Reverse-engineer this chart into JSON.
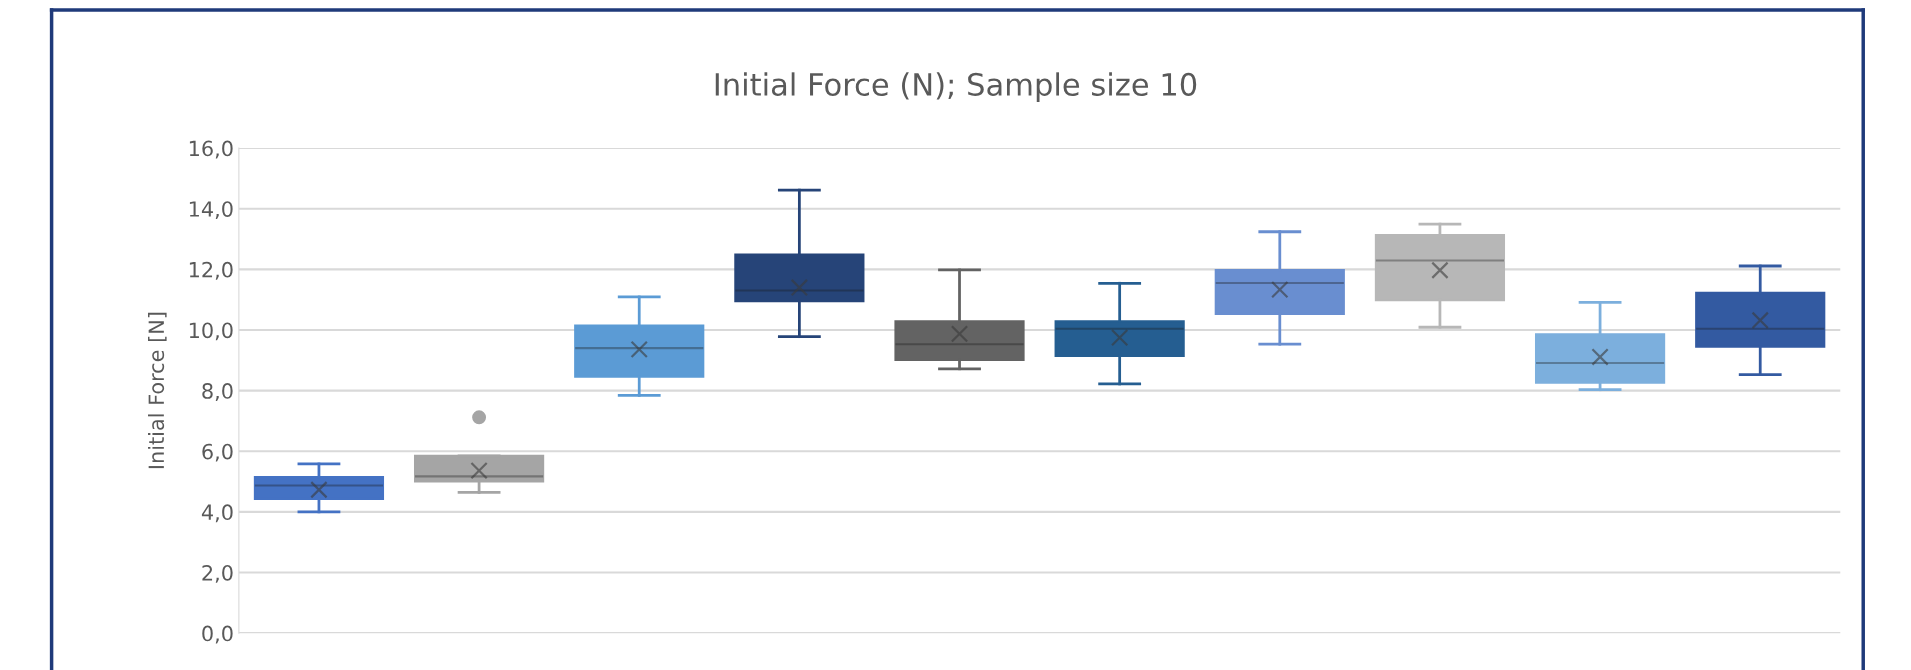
{
  "chart_data": {
    "type": "box",
    "title": "Initial Force (N); Sample size 10",
    "ylabel": "Initial Force [N]",
    "categories": [
      null,
      null,
      null,
      null,
      null,
      null,
      null,
      null,
      null,
      null
    ],
    "colors": [
      "#4472c4",
      "#a5a5a5",
      "#5b9bd5",
      "#264478",
      "#636363",
      "#255e91",
      "#698ed0",
      "#b7b7b7",
      "#7cafdd",
      "#335aa1"
    ],
    "boxes": [
      {
        "low": 4.0,
        "q1": 4.43,
        "median": 4.87,
        "q3": 5.15,
        "high": 5.58,
        "mean": 4.73
      },
      {
        "low": 4.64,
        "q1": 5.0,
        "median": 5.17,
        "q3": 5.85,
        "high": 5.85,
        "mean": 5.36,
        "outliers": [
          7.12
        ]
      },
      {
        "low": 7.84,
        "q1": 8.46,
        "median": 9.4,
        "q3": 10.15,
        "high": 11.09,
        "mean": 9.36
      },
      {
        "low": 9.78,
        "q1": 10.95,
        "median": 11.3,
        "q3": 12.49,
        "high": 14.61,
        "mean": 11.4
      },
      {
        "low": 8.72,
        "q1": 9.01,
        "median": 9.53,
        "q3": 10.29,
        "high": 11.98,
        "mean": 9.87
      },
      {
        "low": 8.22,
        "q1": 9.14,
        "median": 10.04,
        "q3": 10.29,
        "high": 11.54,
        "mean": 9.75
      },
      {
        "low": 9.53,
        "q1": 10.53,
        "median": 11.55,
        "q3": 11.98,
        "high": 13.24,
        "mean": 11.33
      },
      {
        "low": 10.09,
        "q1": 10.98,
        "median": 12.29,
        "q3": 13.13,
        "high": 13.49,
        "mean": 11.97
      },
      {
        "low": 8.03,
        "q1": 8.26,
        "median": 8.91,
        "q3": 9.86,
        "high": 10.91,
        "mean": 9.11
      },
      {
        "low": 8.53,
        "q1": 9.45,
        "median": 10.04,
        "q3": 11.23,
        "high": 12.11,
        "mean": 10.32
      }
    ],
    "ylim": [
      0,
      16
    ],
    "yticks": [
      {
        "value": 0,
        "label": "0,0"
      },
      {
        "value": 2,
        "label": "2,0"
      },
      {
        "value": 4,
        "label": "4,0"
      },
      {
        "value": 6,
        "label": "6,0"
      },
      {
        "value": 8,
        "label": "8,0"
      },
      {
        "value": 10,
        "label": "10,0"
      },
      {
        "value": 12,
        "label": "12,0"
      },
      {
        "value": 14,
        "label": "14,0"
      },
      {
        "value": 16,
        "label": "16,0"
      }
    ],
    "grid": "y",
    "legend": false,
    "tick_labels": "y"
  }
}
